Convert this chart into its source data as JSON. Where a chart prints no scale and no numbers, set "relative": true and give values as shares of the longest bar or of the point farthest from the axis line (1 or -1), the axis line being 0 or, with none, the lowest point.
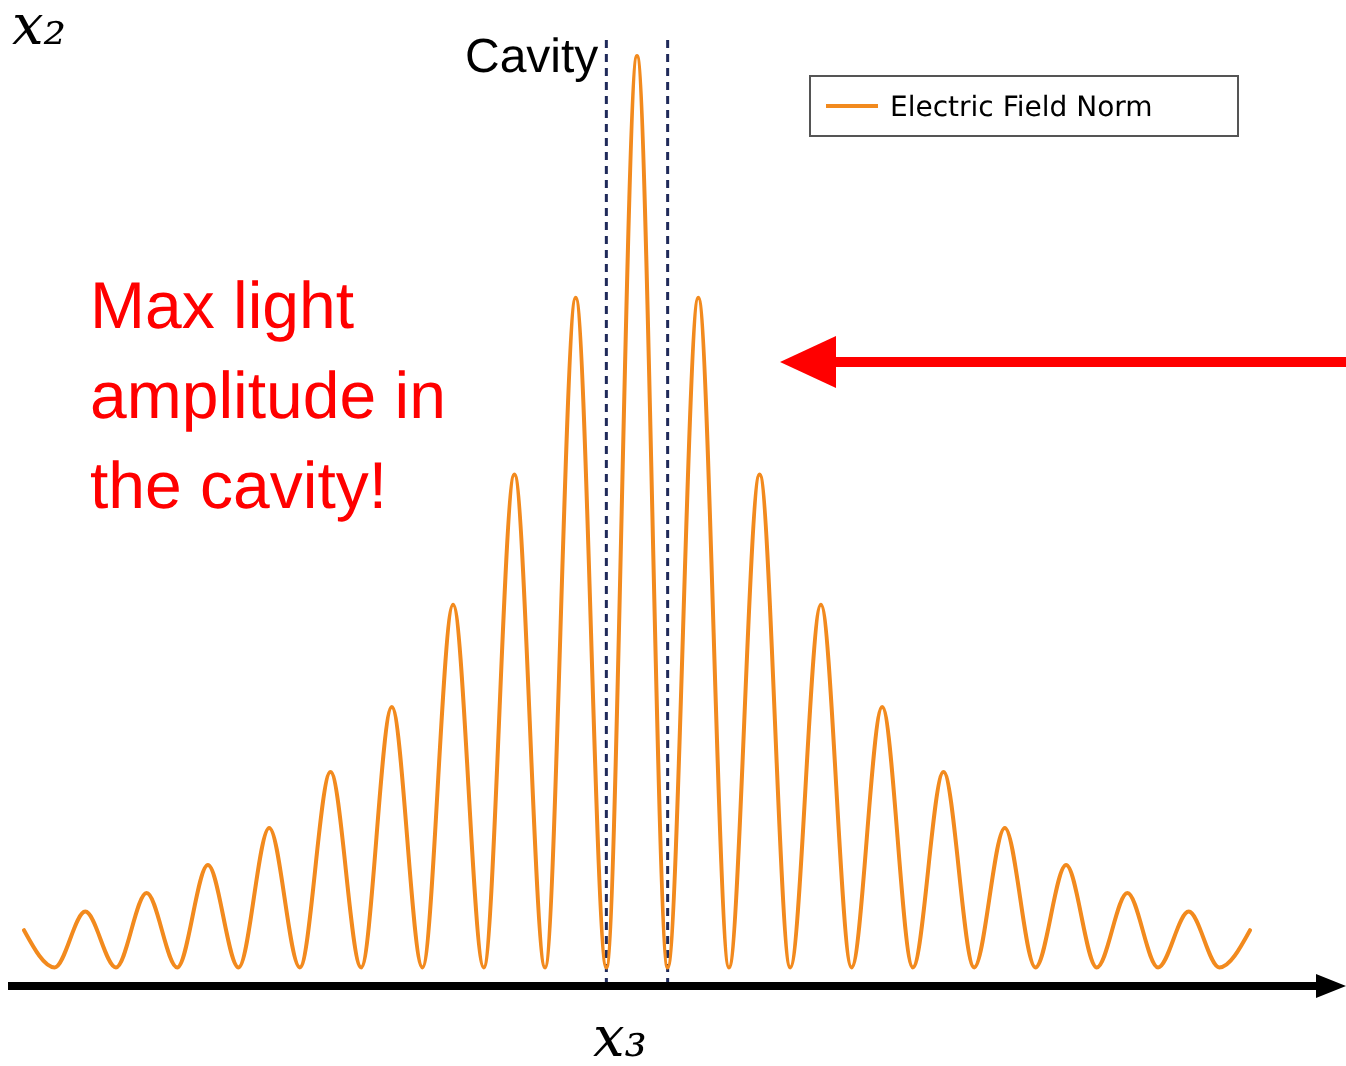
{
  "chart_data": {
    "type": "line",
    "relative": true,
    "xlabel": "x₃",
    "ylabel": "x₂",
    "categories": [
      null,
      null,
      null,
      null,
      null,
      null,
      null,
      null,
      null,
      null,
      null,
      null,
      null,
      null,
      null,
      null,
      null,
      null,
      null,
      null,
      null,
      null,
      null,
      null,
      null,
      null,
      null,
      null,
      null,
      null,
      null,
      null,
      null,
      null,
      null,
      null,
      null,
      null,
      null,
      null,
      null
    ],
    "series": [
      {
        "name": "Electric Field Norm",
        "color": "#f28a1e",
        "values": [
          0.06,
          0.02,
          0.08,
          0.02,
          0.1,
          0.02,
          0.13,
          0.02,
          0.17,
          0.02,
          0.23,
          0.02,
          0.3,
          0.02,
          0.41,
          0.02,
          0.55,
          0.02,
          0.74,
          0.02,
          1.0,
          0.02,
          0.74,
          0.02,
          0.55,
          0.02,
          0.41,
          0.02,
          0.3,
          0.02,
          0.23,
          0.02,
          0.17,
          0.02,
          0.13,
          0.02,
          0.1,
          0.02,
          0.08,
          0.02,
          0.06
        ]
      }
    ],
    "annotations": [
      "Cavity",
      "Max light amplitude in the cavity!"
    ],
    "legend": "top right",
    "marker": "none",
    "line_style": "solid"
  }
}
